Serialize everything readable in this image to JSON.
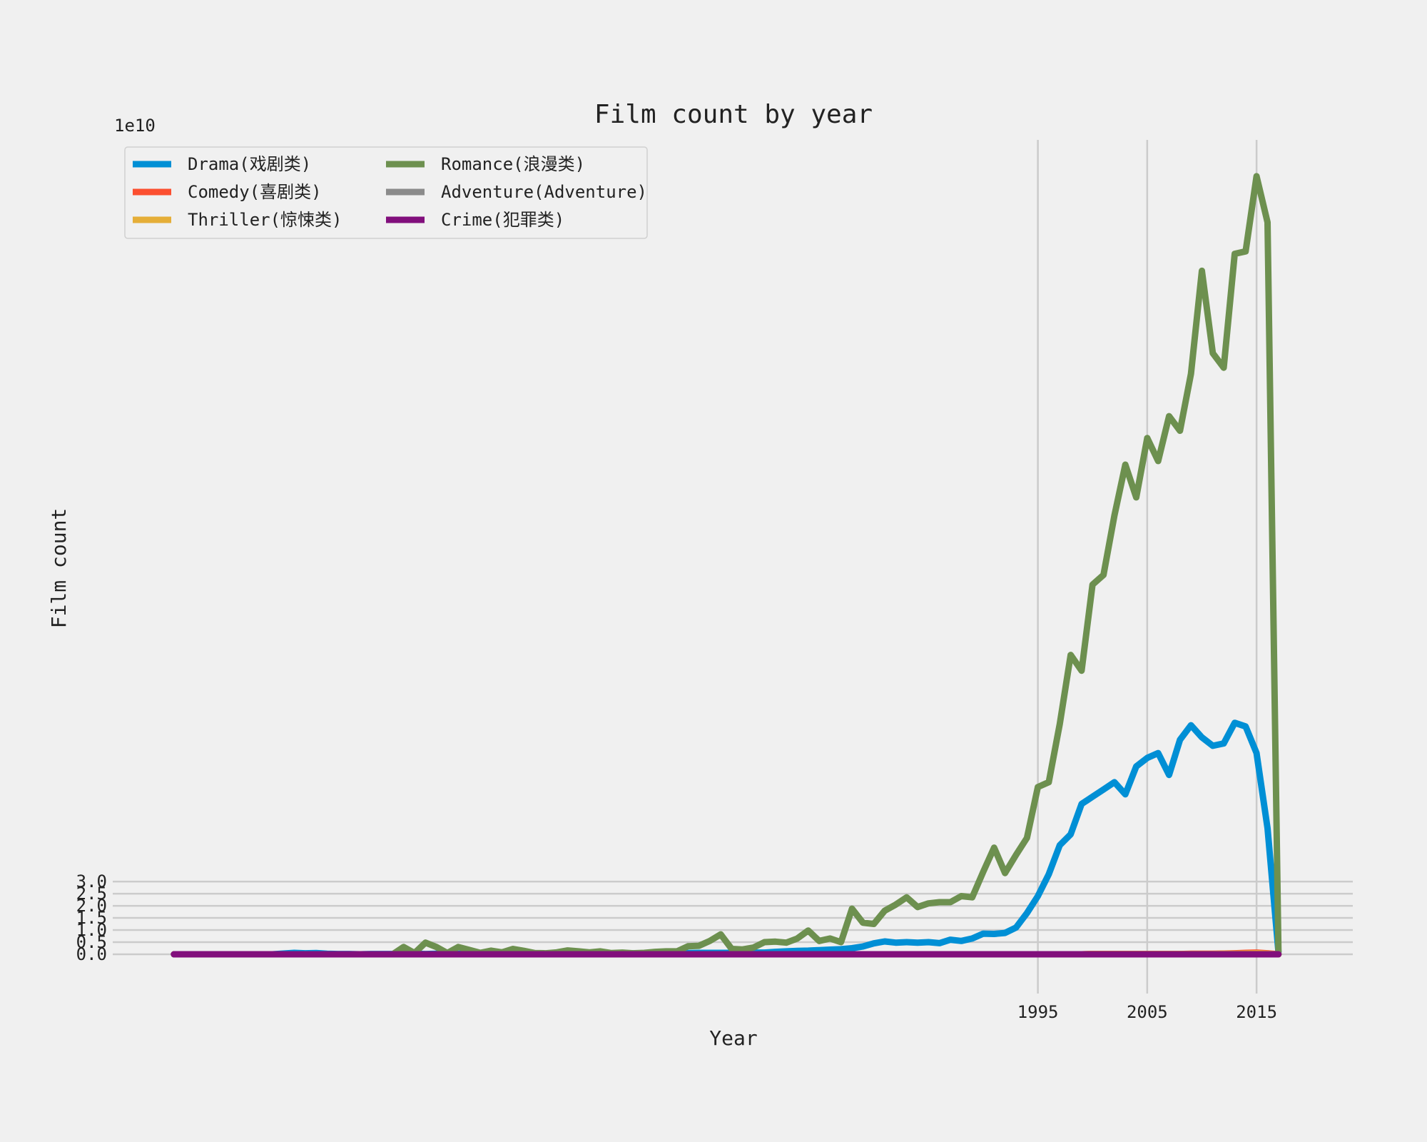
{
  "chart_data": {
    "type": "line",
    "title": "Film count by year",
    "xlabel": "Year",
    "ylabel": "Film count",
    "y_offset_label": "1e10",
    "y_scale": 10000000000,
    "xlim": [
      1910.4,
      2023.8
    ],
    "ylim": [
      -1.62,
      33.6
    ],
    "x_ticks": [
      1995,
      2005,
      2015
    ],
    "y_ticks": [
      0.0,
      0.5,
      1.0,
      1.5,
      2.0,
      2.5,
      3.0
    ],
    "y_tick_labels": [
      "0.0",
      "0.5",
      "1.0",
      "1.5",
      "2.0",
      "2.5",
      "3.0"
    ],
    "grid": true,
    "legend_position": "upper-left",
    "legend_columns": 2,
    "x": [
      1916,
      1917,
      1918,
      1919,
      1920,
      1921,
      1922,
      1923,
      1924,
      1925,
      1926,
      1927,
      1928,
      1929,
      1930,
      1931,
      1932,
      1933,
      1934,
      1935,
      1936,
      1937,
      1938,
      1939,
      1940,
      1941,
      1942,
      1943,
      1944,
      1945,
      1946,
      1947,
      1948,
      1949,
      1950,
      1951,
      1952,
      1953,
      1954,
      1955,
      1956,
      1957,
      1958,
      1959,
      1960,
      1961,
      1962,
      1963,
      1964,
      1965,
      1966,
      1967,
      1968,
      1969,
      1970,
      1971,
      1972,
      1973,
      1974,
      1975,
      1976,
      1977,
      1978,
      1979,
      1980,
      1981,
      1982,
      1983,
      1984,
      1985,
      1986,
      1987,
      1988,
      1989,
      1990,
      1991,
      1992,
      1993,
      1994,
      1995,
      1996,
      1997,
      1998,
      1999,
      2000,
      2001,
      2002,
      2003,
      2004,
      2005,
      2006,
      2007,
      2008,
      2009,
      2010,
      2011,
      2012,
      2013,
      2014,
      2015,
      2016,
      2017
    ],
    "series": [
      {
        "name": "Drama(戏剧类)",
        "color": "#008fd5",
        "values": [
          0,
          0,
          0,
          0,
          0,
          0,
          0,
          0,
          0,
          0,
          0.03,
          0.06,
          0.04,
          0.05,
          0.02,
          0.01,
          0.01,
          0,
          0.01,
          0.01,
          0.01,
          0.02,
          0.02,
          0.01,
          0.02,
          0.02,
          0.02,
          0.01,
          0.02,
          0.02,
          0.02,
          0.02,
          0.02,
          0.02,
          0.02,
          0.02,
          0.02,
          0.02,
          0.03,
          0.03,
          0.03,
          0.04,
          0.04,
          0.04,
          0.04,
          0.05,
          0.05,
          0.05,
          0.06,
          0.06,
          0.06,
          0.06,
          0.06,
          0.07,
          0.07,
          0.1,
          0.12,
          0.14,
          0.15,
          0.17,
          0.19,
          0.21,
          0.25,
          0.32,
          0.45,
          0.53,
          0.48,
          0.5,
          0.48,
          0.5,
          0.46,
          0.6,
          0.55,
          0.65,
          0.85,
          0.84,
          0.88,
          1.1,
          1.7,
          2.4,
          3.3,
          4.5,
          4.95,
          6.2,
          6.5,
          6.8,
          7.1,
          6.6,
          7.75,
          8.1,
          8.3,
          7.4,
          8.85,
          9.45,
          8.95,
          8.6,
          8.7,
          9.55,
          9.4,
          8.3,
          5.2,
          0.1
        ]
      },
      {
        "name": "Comedy(喜剧类)",
        "color": "#fc4f30",
        "values": [
          0,
          0,
          0,
          0,
          0,
          0,
          0,
          0,
          0,
          0,
          0,
          0,
          0,
          0,
          0,
          0,
          0,
          0,
          0,
          0,
          0,
          0,
          0,
          0,
          0,
          0,
          0,
          0,
          0,
          0,
          0,
          0,
          0,
          0,
          0,
          0,
          0,
          0,
          0,
          0,
          0,
          0,
          0,
          0,
          0,
          0,
          0,
          0,
          0,
          0,
          0,
          0,
          0,
          0,
          0,
          0,
          0,
          0,
          0,
          0,
          0,
          0,
          0,
          0,
          0,
          0,
          0,
          0,
          0,
          0,
          0,
          0,
          0,
          0,
          0,
          0,
          0,
          0,
          0,
          0,
          0,
          0,
          0,
          0,
          0.01,
          0.01,
          0.01,
          0.01,
          0.01,
          0.01,
          0.01,
          0.01,
          0.01,
          0.02,
          0.02,
          0.02,
          0.03,
          0.04,
          0.06,
          0.07,
          0.04,
          0
        ]
      },
      {
        "name": "Thriller(惊悚类)",
        "color": "#e5ae38",
        "values": [
          0,
          0,
          0,
          0,
          0,
          0,
          0,
          0,
          0,
          0,
          0,
          0,
          0,
          0,
          0,
          0,
          0,
          0,
          0,
          0,
          0,
          0,
          0,
          0,
          0,
          0,
          0,
          0,
          0,
          0,
          0,
          0,
          0,
          0,
          0,
          0,
          0,
          0,
          0,
          0,
          0,
          0,
          0,
          0,
          0,
          0,
          0,
          0,
          0,
          0,
          0,
          0,
          0,
          0,
          0,
          0,
          0,
          0,
          0,
          0,
          0,
          0,
          0,
          0,
          0,
          0,
          0,
          0,
          0,
          0,
          0,
          0,
          0,
          0,
          0,
          0,
          0,
          0,
          0,
          0,
          0,
          0,
          0,
          0,
          0.01,
          0.01,
          0.01,
          0.01,
          0.01,
          0.01,
          0.01,
          0.01,
          0.01,
          0.01,
          0.01,
          0.01,
          0.02,
          0.02,
          0.03,
          0.04,
          0.02,
          0
        ]
      },
      {
        "name": "Romance(浪漫类)",
        "color": "#6d904f",
        "values": [
          0,
          0,
          0,
          0,
          0,
          0,
          0,
          0,
          0,
          0,
          0,
          0,
          0,
          0,
          0,
          0,
          0,
          0,
          0,
          0,
          0,
          0.3,
          0.05,
          0.48,
          0.3,
          0.05,
          0.3,
          0.18,
          0.06,
          0.15,
          0.08,
          0.22,
          0.14,
          0.05,
          0.04,
          0.08,
          0.16,
          0.12,
          0.08,
          0.12,
          0.05,
          0.07,
          0.04,
          0.06,
          0.1,
          0.12,
          0.12,
          0.33,
          0.35,
          0.55,
          0.82,
          0.22,
          0.2,
          0.28,
          0.5,
          0.52,
          0.48,
          0.65,
          0.98,
          0.55,
          0.65,
          0.5,
          1.88,
          1.3,
          1.25,
          1.8,
          2.05,
          2.35,
          1.95,
          2.1,
          2.15,
          2.15,
          2.4,
          2.35,
          3.4,
          4.4,
          3.35,
          4.1,
          4.8,
          6.9,
          7.1,
          9.5,
          12.35,
          11.7,
          15.25,
          15.65,
          18.1,
          20.2,
          18.85,
          21.3,
          20.35,
          22.2,
          21.6,
          23.95,
          28.2,
          24.8,
          24.2,
          28.9,
          29.0,
          32.1,
          30.2,
          0.1
        ]
      },
      {
        "name": "Adventure(Adventure)",
        "color": "#8b8b8b",
        "values": [
          0,
          0,
          0,
          0,
          0,
          0,
          0,
          0,
          0,
          0,
          0,
          0,
          0,
          0,
          0,
          0,
          0,
          0,
          0,
          0,
          0,
          0,
          0,
          0,
          0,
          0,
          0,
          0,
          0,
          0,
          0,
          0,
          0,
          0,
          0,
          0,
          0,
          0,
          0,
          0,
          0,
          0,
          0,
          0,
          0,
          0,
          0,
          0,
          0,
          0,
          0,
          0,
          0,
          0,
          0,
          0,
          0,
          0,
          0,
          0,
          0,
          0,
          0,
          0,
          0,
          0,
          0,
          0,
          0,
          0,
          0,
          0,
          0,
          0,
          0,
          0,
          0,
          0,
          0,
          0,
          0,
          0,
          0,
          0,
          0,
          0,
          0,
          0,
          0,
          0,
          0,
          0,
          0,
          0,
          0,
          0,
          0,
          0,
          0,
          0,
          0,
          0
        ]
      },
      {
        "name": "Crime(犯罪类)",
        "color": "#810f7c",
        "values": [
          0,
          0,
          0,
          0,
          0,
          0,
          0,
          0,
          0,
          0,
          0,
          0,
          0,
          0,
          0,
          0,
          0,
          0,
          0,
          0,
          0,
          0,
          0,
          0,
          0,
          0,
          0,
          0,
          0,
          0,
          0,
          0,
          0,
          0,
          0,
          0,
          0,
          0,
          0,
          0,
          0,
          0,
          0,
          0,
          0,
          0,
          0,
          0,
          0,
          0,
          0,
          0,
          0,
          0,
          0,
          0,
          0,
          0,
          0,
          0,
          0,
          0,
          0,
          0,
          0,
          0,
          0,
          0,
          0,
          0,
          0,
          0,
          0,
          0,
          0,
          0,
          0,
          0,
          0,
          0,
          0,
          0,
          0,
          0,
          0,
          0,
          0,
          0,
          0,
          0,
          0,
          0,
          0,
          0,
          0,
          0,
          0,
          0,
          0,
          0,
          0,
          0
        ]
      }
    ]
  }
}
